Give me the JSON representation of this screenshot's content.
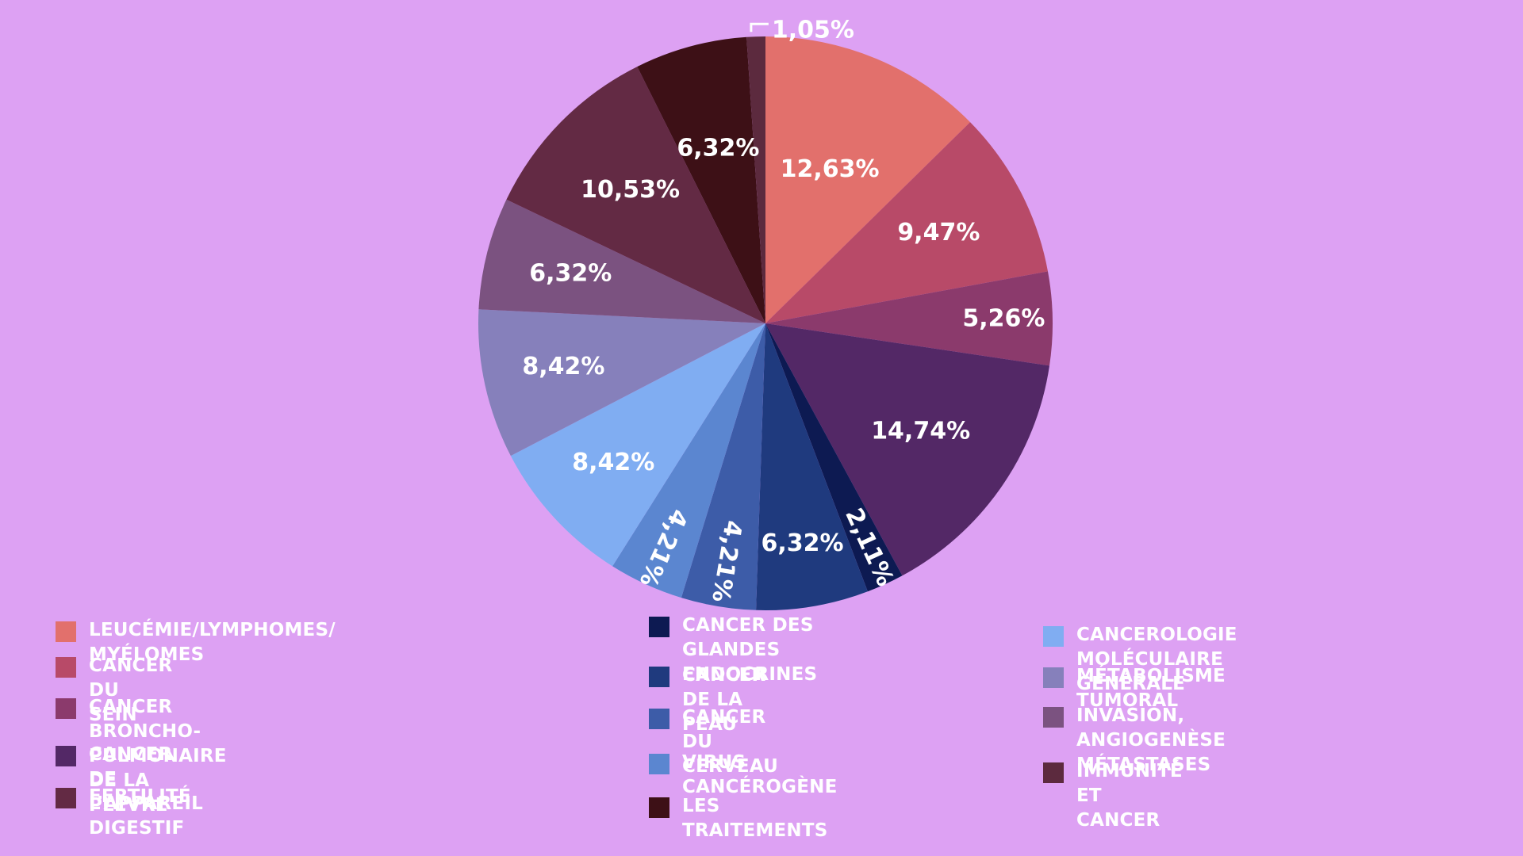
{
  "chart_data": {
    "type": "pie",
    "title": "",
    "slices": [
      {
        "label": "LEUCÉMIE/LYMPHOMES/ MYÉLOMES",
        "value": 12.63,
        "display": "12,63%",
        "color": "#e2706c"
      },
      {
        "label": "CANCER DU SEIN",
        "value": 9.47,
        "display": "9,47%",
        "color": "#b84a68"
      },
      {
        "label": "CANCER BRONCHO-PULMONAIRE\n DE LA PLÈVRE",
        "value": 5.26,
        "display": "5,26%",
        "color": "#8b3a6c"
      },
      {
        "label": "CANCER DE L’APPAREIL DIGESTIF",
        "value": 14.74,
        "display": "14,74%",
        "color": "#532866"
      },
      {
        "label": "CANCER DES GLANDES\nENDOCRINES",
        "value": 2.11,
        "display": "2,11%",
        "color": "#0d1a52"
      },
      {
        "label": "CANCER DE LA PEAU",
        "value": 6.32,
        "display": "6,32%",
        "color": "#1f3a7e"
      },
      {
        "label": "CANCER DU CERVEAU",
        "value": 4.21,
        "display": "4,21%",
        "color": "#3d5ca8"
      },
      {
        "label": "VIRUS CANCÉROGÈNE",
        "value": 4.21,
        "display": "4,21%",
        "color": "#5b86d0"
      },
      {
        "label": "CANCEROLOGIE MOLÉCULAIRE GÉNÉRALE",
        "value": 8.42,
        "display": "8,42%",
        "color": "#80adf2"
      },
      {
        "label": "MÉTABOLISME TUMORAL",
        "value": 8.42,
        "display": "8,42%",
        "color": "#8680bb"
      },
      {
        "label": "INVASION, ANGIOGENÈSE\nMÉTASTASES",
        "value": 6.32,
        "display": "6,32%",
        "color": "#7b5280"
      },
      {
        "label": "FERTILITÉ",
        "value": 10.53,
        "display": "10,53%",
        "color": "#632a44"
      },
      {
        "label": "LES TRAITEMENTS",
        "value": 6.32,
        "display": "6,32%",
        "color": "#3d1016"
      },
      {
        "label": "IMMUNITÉ ET CANCER",
        "value": 1.05,
        "display": "1,05%",
        "color": "#5c2a3e"
      }
    ]
  }
}
